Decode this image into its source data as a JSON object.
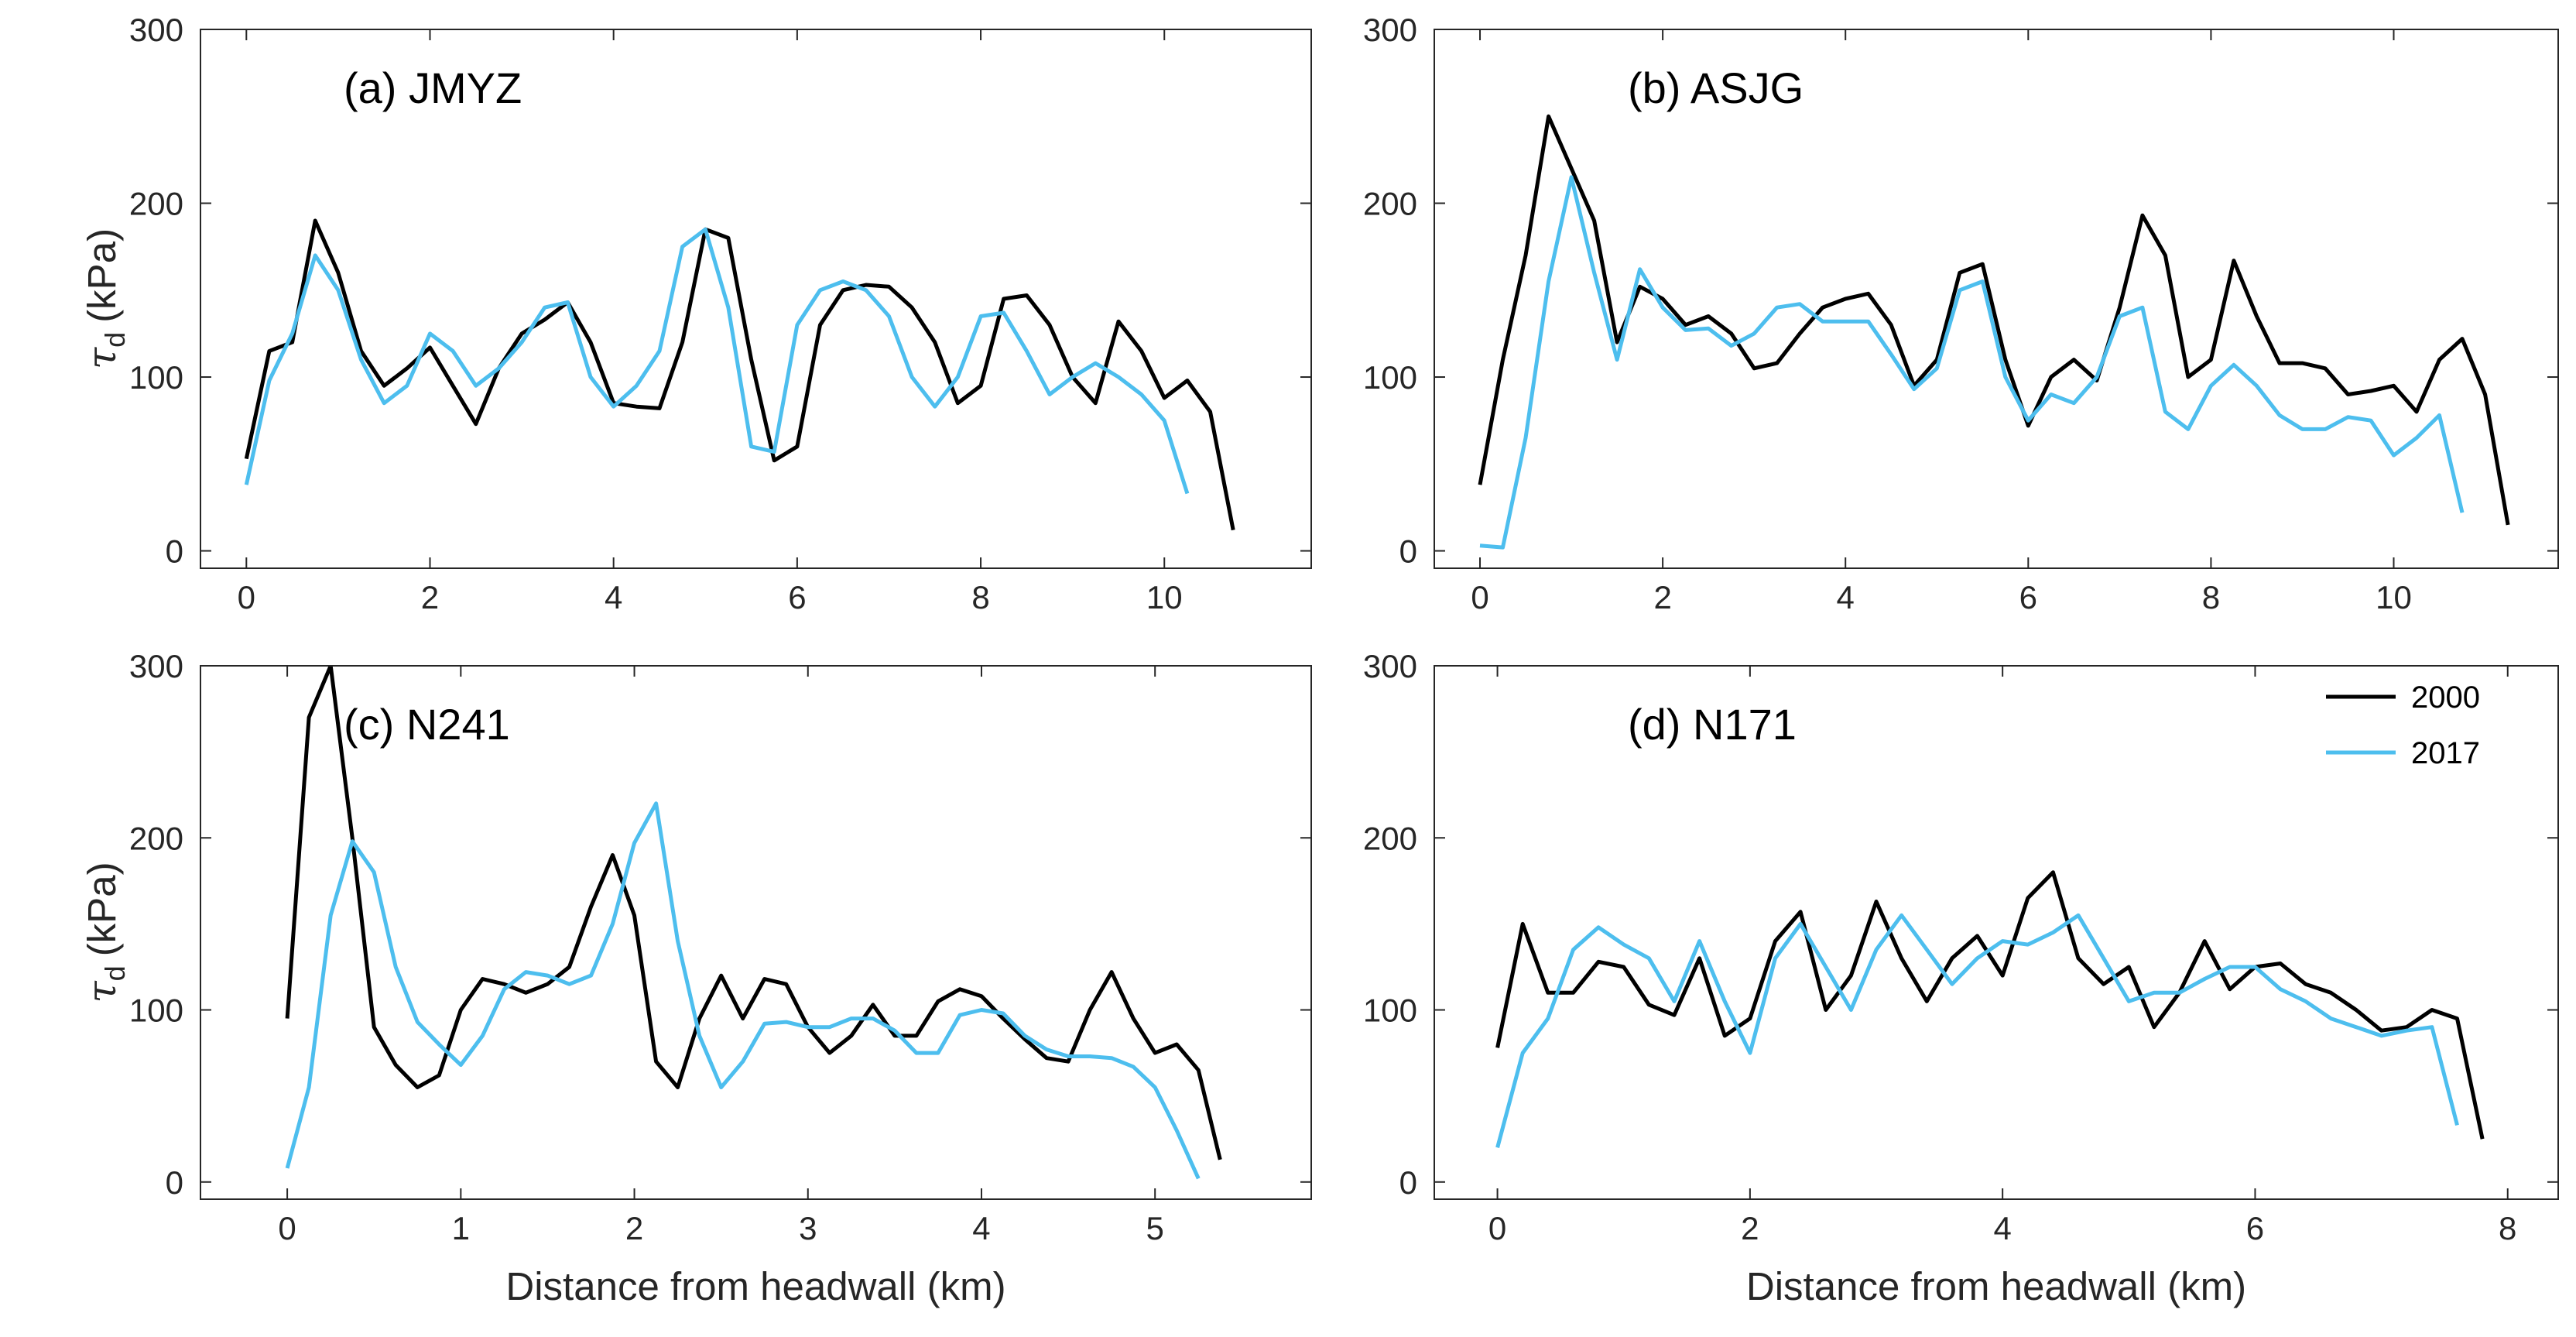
{
  "chart_data": [
    {
      "type": "line",
      "annotation": "(a) JMYZ",
      "ylabel": {
        "symbol": "τ",
        "subscript": "d",
        "unit": "(kPa)"
      },
      "xlim": [
        -0.5,
        11.6
      ],
      "xticks": [
        0,
        2,
        4,
        6,
        8,
        10
      ],
      "ylim": [
        -10,
        300
      ],
      "yticks": [
        0,
        100,
        200,
        300
      ],
      "series": [
        {
          "color": "#000000",
          "x": [
            0,
            0.25,
            0.5,
            0.75,
            1,
            1.25,
            1.5,
            1.75,
            2,
            2.25,
            2.5,
            2.75,
            3,
            3.25,
            3.5,
            3.75,
            4,
            4.25,
            4.5,
            4.75,
            5,
            5.25,
            5.5,
            5.75,
            6,
            6.25,
            6.5,
            6.75,
            7,
            7.25,
            7.5,
            7.75,
            8,
            8.25,
            8.5,
            8.75,
            9,
            9.25,
            9.5,
            9.75,
            10,
            10.25,
            10.5,
            10.75
          ],
          "values": [
            53,
            115,
            120,
            190,
            160,
            115,
            95,
            105,
            117,
            95,
            73,
            105,
            125,
            133,
            143,
            120,
            85,
            83,
            82,
            120,
            185,
            180,
            110,
            52,
            60,
            130,
            150,
            153,
            152,
            140,
            120,
            85,
            95,
            145,
            147,
            130,
            100,
            85,
            132,
            115,
            88,
            98,
            80,
            12
          ]
        },
        {
          "color": "#4dbeee",
          "x": [
            0,
            0.25,
            0.5,
            0.75,
            1,
            1.25,
            1.5,
            1.75,
            2,
            2.25,
            2.5,
            2.75,
            3,
            3.25,
            3.5,
            3.75,
            4,
            4.25,
            4.5,
            4.75,
            5,
            5.25,
            5.5,
            5.75,
            6,
            6.25,
            6.5,
            6.75,
            7,
            7.25,
            7.5,
            7.75,
            8,
            8.25,
            8.5,
            8.75,
            9,
            9.25,
            9.5,
            9.75,
            10,
            10.25
          ],
          "values": [
            38,
            98,
            125,
            170,
            150,
            110,
            85,
            95,
            125,
            115,
            95,
            105,
            120,
            140,
            143,
            100,
            83,
            95,
            115,
            175,
            185,
            140,
            60,
            57,
            130,
            150,
            155,
            150,
            135,
            100,
            83,
            100,
            135,
            137,
            115,
            90,
            100,
            108,
            100,
            90,
            75,
            33
          ]
        }
      ]
    },
    {
      "type": "line",
      "annotation": "(b) ASJG",
      "xlim": [
        -0.5,
        11.8
      ],
      "xticks": [
        0,
        2,
        4,
        6,
        8,
        10
      ],
      "ylim": [
        -10,
        300
      ],
      "yticks": [
        0,
        100,
        200,
        300
      ],
      "series": [
        {
          "color": "#000000",
          "x": [
            0,
            0.25,
            0.5,
            0.75,
            1,
            1.25,
            1.5,
            1.75,
            2,
            2.25,
            2.5,
            2.75,
            3,
            3.25,
            3.5,
            3.75,
            4,
            4.25,
            4.5,
            4.75,
            5,
            5.25,
            5.5,
            5.75,
            6,
            6.25,
            6.5,
            6.75,
            7,
            7.25,
            7.5,
            7.75,
            8,
            8.25,
            8.5,
            8.75,
            9,
            9.25,
            9.5,
            9.75,
            10,
            10.25,
            10.5,
            10.75,
            11,
            11.25
          ],
          "values": [
            38,
            110,
            170,
            250,
            220,
            190,
            120,
            152,
            145,
            130,
            135,
            125,
            105,
            108,
            125,
            140,
            145,
            148,
            130,
            95,
            110,
            160,
            165,
            110,
            72,
            100,
            110,
            98,
            140,
            193,
            170,
            100,
            110,
            167,
            135,
            108,
            108,
            105,
            90,
            92,
            95,
            80,
            110,
            122,
            90,
            15
          ]
        },
        {
          "color": "#4dbeee",
          "x": [
            0,
            0.25,
            0.5,
            0.75,
            1,
            1.25,
            1.5,
            1.75,
            2,
            2.25,
            2.5,
            2.75,
            3,
            3.25,
            3.5,
            3.75,
            4,
            4.25,
            4.5,
            4.75,
            5,
            5.25,
            5.5,
            5.75,
            6,
            6.25,
            6.5,
            6.75,
            7,
            7.25,
            7.5,
            7.75,
            8,
            8.25,
            8.5,
            8.75,
            9,
            9.25,
            9.5,
            9.75,
            10,
            10.25,
            10.5,
            10.75
          ],
          "values": [
            3,
            2,
            65,
            155,
            215,
            160,
            110,
            162,
            140,
            127,
            128,
            118,
            125,
            140,
            142,
            132,
            132,
            132,
            113,
            93,
            105,
            150,
            155,
            100,
            75,
            90,
            85,
            100,
            135,
            140,
            80,
            70,
            95,
            107,
            95,
            78,
            70,
            70,
            77,
            75,
            55,
            65,
            78,
            22
          ]
        }
      ]
    },
    {
      "type": "line",
      "annotation": "(c) N241",
      "ylabel": {
        "symbol": "τ",
        "subscript": "d",
        "unit": "(kPa)"
      },
      "xlabel": "Distance from headwall (km)",
      "xlim": [
        -0.5,
        5.9
      ],
      "xticks": [
        0,
        1,
        2,
        3,
        4,
        5
      ],
      "ylim": [
        -10,
        300
      ],
      "yticks": [
        0,
        100,
        200,
        300
      ],
      "series": [
        {
          "color": "#000000",
          "x": [
            0,
            0.125,
            0.25,
            0.375,
            0.5,
            0.625,
            0.75,
            0.875,
            1,
            1.125,
            1.25,
            1.375,
            1.5,
            1.625,
            1.75,
            1.875,
            2,
            2.125,
            2.25,
            2.375,
            2.5,
            2.625,
            2.75,
            2.875,
            3,
            3.125,
            3.25,
            3.375,
            3.5,
            3.625,
            3.75,
            3.875,
            4,
            4.125,
            4.25,
            4.375,
            4.5,
            4.625,
            4.75,
            4.875,
            5,
            5.125,
            5.25,
            5.375
          ],
          "values": [
            95,
            270,
            300,
            200,
            90,
            68,
            55,
            62,
            100,
            118,
            115,
            110,
            115,
            125,
            160,
            190,
            155,
            70,
            55,
            95,
            120,
            95,
            118,
            115,
            90,
            75,
            85,
            103,
            85,
            85,
            105,
            112,
            108,
            95,
            83,
            72,
            70,
            100,
            122,
            95,
            75,
            80,
            65,
            13
          ]
        },
        {
          "color": "#4dbeee",
          "x": [
            0,
            0.125,
            0.25,
            0.375,
            0.5,
            0.625,
            0.75,
            0.875,
            1,
            1.125,
            1.25,
            1.375,
            1.5,
            1.625,
            1.75,
            1.875,
            2,
            2.125,
            2.25,
            2.375,
            2.5,
            2.625,
            2.75,
            2.875,
            3,
            3.125,
            3.25,
            3.375,
            3.5,
            3.625,
            3.75,
            3.875,
            4,
            4.125,
            4.25,
            4.375,
            4.5,
            4.625,
            4.75,
            4.875,
            5,
            5.125,
            5.25
          ],
          "values": [
            8,
            55,
            155,
            198,
            180,
            125,
            93,
            80,
            68,
            85,
            112,
            122,
            120,
            115,
            120,
            150,
            197,
            220,
            140,
            85,
            55,
            70,
            92,
            93,
            90,
            90,
            95,
            95,
            88,
            75,
            75,
            97,
            100,
            98,
            85,
            77,
            73,
            73,
            72,
            67,
            55,
            30,
            2
          ]
        }
      ]
    },
    {
      "type": "line",
      "annotation": "(d) N171",
      "xlabel": "Distance from headwall (km)",
      "legend": "upper right",
      "xlim": [
        -0.5,
        8.4
      ],
      "xticks": [
        0,
        2,
        4,
        6,
        8
      ],
      "ylim": [
        -10,
        300
      ],
      "yticks": [
        0,
        100,
        200,
        300
      ],
      "series": [
        {
          "name": "2000",
          "color": "#000000",
          "x": [
            0,
            0.2,
            0.4,
            0.6,
            0.8,
            1,
            1.2,
            1.4,
            1.6,
            1.8,
            2,
            2.2,
            2.4,
            2.6,
            2.8,
            3,
            3.2,
            3.4,
            3.6,
            3.8,
            4,
            4.2,
            4.4,
            4.6,
            4.8,
            5,
            5.2,
            5.4,
            5.6,
            5.8,
            6,
            6.2,
            6.4,
            6.6,
            6.8,
            7,
            7.2,
            7.4,
            7.6,
            7.8
          ],
          "values": [
            78,
            150,
            110,
            110,
            128,
            125,
            103,
            97,
            130,
            85,
            95,
            140,
            157,
            100,
            120,
            163,
            130,
            105,
            130,
            143,
            120,
            165,
            180,
            130,
            115,
            125,
            90,
            110,
            140,
            112,
            125,
            127,
            115,
            110,
            100,
            88,
            90,
            100,
            95,
            25
          ]
        },
        {
          "name": "2017",
          "color": "#4dbeee",
          "x": [
            0,
            0.2,
            0.4,
            0.6,
            0.8,
            1,
            1.2,
            1.4,
            1.6,
            1.8,
            2,
            2.2,
            2.4,
            2.6,
            2.8,
            3,
            3.2,
            3.4,
            3.6,
            3.8,
            4,
            4.2,
            4.4,
            4.6,
            4.8,
            5,
            5.2,
            5.4,
            5.6,
            5.8,
            6,
            6.2,
            6.4,
            6.6,
            6.8,
            7,
            7.2,
            7.4,
            7.6
          ],
          "values": [
            20,
            75,
            95,
            135,
            148,
            138,
            130,
            105,
            140,
            105,
            75,
            130,
            150,
            125,
            100,
            135,
            155,
            135,
            115,
            130,
            140,
            138,
            145,
            155,
            130,
            105,
            110,
            110,
            118,
            125,
            125,
            112,
            105,
            95,
            90,
            85,
            88,
            90,
            33
          ]
        }
      ]
    }
  ]
}
